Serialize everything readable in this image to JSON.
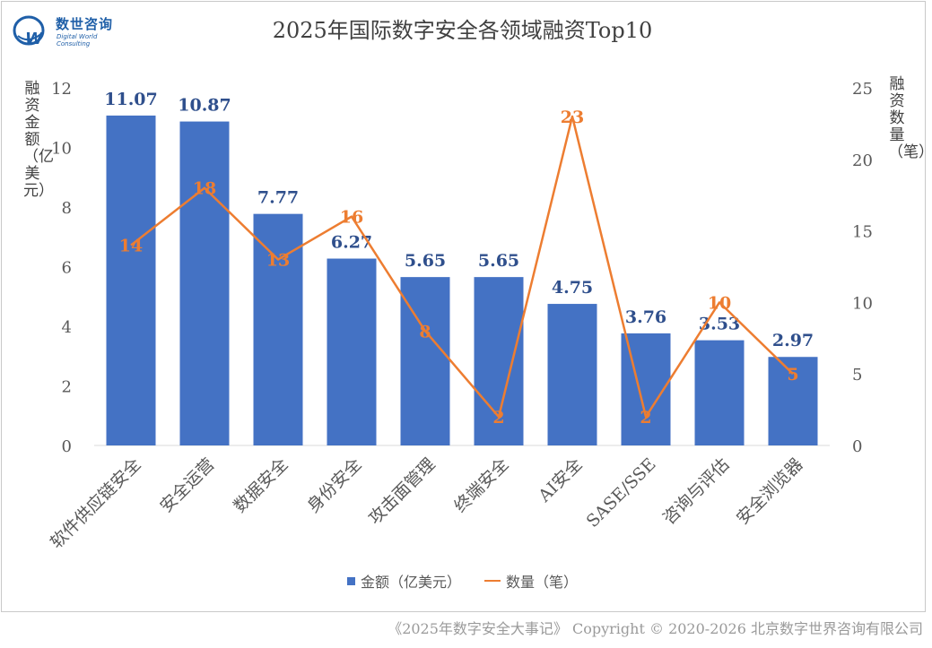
{
  "logo": {
    "cn": "数世咨询",
    "en": "Digital World Consulting"
  },
  "footer": "《2025年数字安全大事记》 Copyright © 2020-2026 北京数字世界咨询有限公司",
  "chart_data": {
    "type": "bar+line",
    "title": "2025年国际数字安全各领域融资Top10",
    "categories": [
      "软件供应链安全",
      "安全运营",
      "数据安全",
      "身份安全",
      "攻击面管理",
      "终端安全",
      "AI安全",
      "SASE/SSE",
      "咨询与评估",
      "安全浏览器"
    ],
    "series": [
      {
        "name": "金额（亿美元）",
        "type": "bar",
        "axis": "left",
        "color": "#4472c4",
        "values": [
          11.07,
          10.87,
          7.77,
          6.27,
          5.65,
          5.65,
          4.75,
          3.76,
          3.53,
          2.97
        ]
      },
      {
        "name": "数量（笔）",
        "type": "line",
        "axis": "right",
        "color": "#ed7d31",
        "values": [
          14,
          18,
          13,
          16,
          8,
          2,
          23,
          2,
          10,
          5
        ]
      }
    ],
    "ylabel": "融资金额（亿美元）",
    "y2label": "融资数量（笔）",
    "ylim": [
      0,
      12
    ],
    "y2lim": [
      0,
      25
    ],
    "yticks": [
      0,
      2,
      4,
      6,
      8,
      10,
      12
    ],
    "y2ticks": [
      0,
      5,
      10,
      15,
      20,
      25
    ],
    "legend_position": "bottom"
  }
}
